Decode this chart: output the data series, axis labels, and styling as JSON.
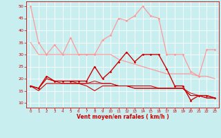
{
  "title": "",
  "xlabel": "Vent moyen/en rafales ( km/h )",
  "ylabel": "",
  "bg_color": "#c8eef0",
  "grid_color": "#ffffff",
  "x_ticks": [
    0,
    1,
    2,
    3,
    4,
    5,
    6,
    7,
    8,
    9,
    10,
    11,
    12,
    13,
    14,
    15,
    16,
    17,
    18,
    19,
    20,
    21,
    22,
    23
  ],
  "ylim": [
    8,
    52
  ],
  "xlim": [
    -0.5,
    23.5
  ],
  "yticks": [
    10,
    15,
    20,
    25,
    30,
    35,
    40,
    45,
    50
  ],
  "series": [
    {
      "name": "light_rafales",
      "color": "#ff9999",
      "lw": 0.9,
      "marker": "D",
      "ms": 1.8,
      "data_x": [
        0,
        1,
        2,
        3,
        4,
        5,
        6,
        7,
        8,
        9,
        10,
        11,
        12,
        13,
        14,
        15,
        16,
        17,
        18,
        19,
        20,
        21,
        22,
        23
      ],
      "data_y": [
        50,
        35,
        30,
        34,
        30,
        37,
        30,
        30,
        30,
        36,
        38,
        45,
        44,
        46,
        50,
        46,
        45,
        30,
        30,
        30,
        23,
        21,
        32,
        32
      ]
    },
    {
      "name": "light_moyen",
      "color": "#ff9999",
      "lw": 0.9,
      "marker": null,
      "ms": 0,
      "data_x": [
        0,
        1,
        2,
        3,
        4,
        5,
        6,
        7,
        8,
        9,
        10,
        11,
        12,
        13,
        14,
        15,
        16,
        17,
        18,
        19,
        20,
        21,
        22,
        23
      ],
      "data_y": [
        35,
        30,
        30,
        30,
        30,
        30,
        30,
        30,
        30,
        30,
        30,
        28,
        27,
        26,
        25,
        24,
        23,
        22,
        22,
        22,
        22,
        21,
        21,
        20
      ]
    },
    {
      "name": "dark_rafales",
      "color": "#cc0000",
      "lw": 1.0,
      "marker": "D",
      "ms": 1.8,
      "data_x": [
        0,
        1,
        2,
        3,
        4,
        5,
        6,
        7,
        8,
        9,
        10,
        11,
        12,
        13,
        14,
        15,
        16,
        17,
        18,
        19,
        20,
        21,
        22,
        23
      ],
      "data_y": [
        17,
        16,
        21,
        19,
        19,
        19,
        19,
        19,
        25,
        20,
        23,
        27,
        31,
        27,
        30,
        30,
        30,
        24,
        17,
        17,
        11,
        13,
        13,
        12
      ]
    },
    {
      "name": "dark_moyen1",
      "color": "#cc0000",
      "lw": 0.8,
      "marker": null,
      "ms": 0,
      "data_x": [
        0,
        1,
        2,
        3,
        4,
        5,
        6,
        7,
        8,
        9,
        10,
        11,
        12,
        13,
        14,
        15,
        16,
        17,
        18,
        19,
        20,
        21,
        22,
        23
      ],
      "data_y": [
        17,
        15,
        18,
        18,
        18,
        18,
        18,
        17,
        15,
        17,
        17,
        17,
        17,
        17,
        17,
        17,
        16,
        16,
        16,
        16,
        13,
        13,
        12,
        12
      ]
    },
    {
      "name": "dark_moyen2",
      "color": "#cc0000",
      "lw": 0.7,
      "marker": null,
      "ms": 0,
      "data_x": [
        0,
        1,
        2,
        3,
        4,
        5,
        6,
        7,
        8,
        9,
        10,
        11,
        12,
        13,
        14,
        15,
        16,
        17,
        18,
        19,
        20,
        21,
        22,
        23
      ],
      "data_y": [
        17,
        16,
        20,
        19,
        18,
        18,
        18,
        18,
        18,
        18,
        18,
        17,
        17,
        16,
        16,
        16,
        16,
        16,
        16,
        16,
        14,
        13,
        13,
        12
      ]
    },
    {
      "name": "dark_moyen3",
      "color": "#cc0000",
      "lw": 0.7,
      "marker": null,
      "ms": 0,
      "data_x": [
        0,
        1,
        2,
        3,
        4,
        5,
        6,
        7,
        8,
        9,
        10,
        11,
        12,
        13,
        14,
        15,
        16,
        17,
        18,
        19,
        20,
        21,
        22,
        23
      ],
      "data_y": [
        17,
        16,
        20,
        19,
        19,
        19,
        18,
        18,
        19,
        18,
        18,
        17,
        17,
        16,
        16,
        16,
        16,
        16,
        16,
        16,
        13,
        13,
        12,
        12
      ]
    }
  ]
}
